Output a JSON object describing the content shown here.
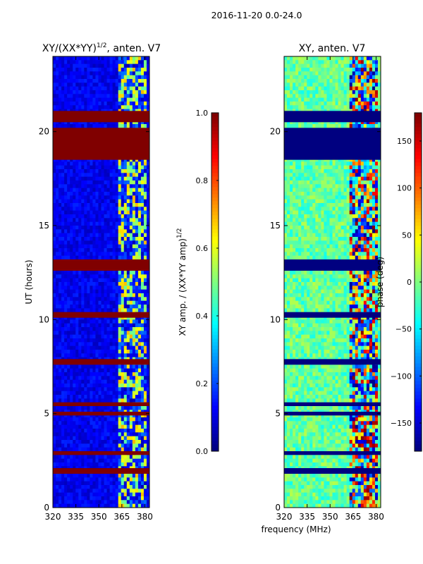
{
  "figure": {
    "suptitle": "2016-11-20 0.0-24.0",
    "shared_xlabel": "frequency (MHz)"
  },
  "chart_data": [
    {
      "type": "heatmap",
      "title_main": "XY/(XX*YY)",
      "title_exp": "1/2",
      "title_suffix": ", anten. V7",
      "xlim": [
        320,
        383
      ],
      "xticks": [
        "320",
        "335",
        "350",
        "365",
        "380"
      ],
      "xtick_values": [
        320,
        335,
        350,
        365,
        380
      ],
      "ylim": [
        0,
        24
      ],
      "ylabel": "UT (hours)",
      "yticks": [
        "0",
        "5",
        "10",
        "15",
        "20"
      ],
      "ytick_values": [
        0,
        5,
        10,
        15,
        20
      ],
      "colormap": "jet",
      "base_value": 0.1,
      "active_band_mhz": [
        363,
        382
      ],
      "active_band_value": 0.45,
      "saturated_bands_hours": [
        [
          18.5,
          20.2
        ],
        [
          20.5,
          21.1
        ],
        [
          12.6,
          13.2
        ],
        [
          10.1,
          10.4
        ],
        [
          7.6,
          7.9
        ],
        [
          5.4,
          5.6
        ],
        [
          4.9,
          5.1
        ],
        [
          2.8,
          3.0
        ],
        [
          1.8,
          2.1
        ]
      ],
      "saturated_value": 1.0,
      "colorbar": {
        "label_main": "XY amp. / (XX*YY amp)",
        "label_exp": "1/2",
        "range": [
          0,
          1
        ],
        "ticks": [
          "0.0",
          "0.2",
          "0.4",
          "0.6",
          "0.8",
          "1.0"
        ],
        "tick_values": [
          0,
          0.2,
          0.4,
          0.6,
          0.8,
          1.0
        ]
      }
    },
    {
      "type": "heatmap",
      "title": "XY, anten. V7",
      "xlim": [
        320,
        383
      ],
      "xticks": [
        "320",
        "335",
        "350",
        "365",
        "380"
      ],
      "xtick_values": [
        320,
        335,
        350,
        365,
        380
      ],
      "ylim": [
        0,
        24
      ],
      "yticks": [
        "0",
        "5",
        "10",
        "15",
        "20"
      ],
      "ytick_values": [
        0,
        5,
        10,
        15,
        20
      ],
      "colormap": "jet",
      "base_value": -10,
      "saturated_bands_hours": [
        [
          18.5,
          20.2
        ],
        [
          20.5,
          21.1
        ],
        [
          12.6,
          13.2
        ],
        [
          10.1,
          10.4
        ],
        [
          7.6,
          7.9
        ],
        [
          5.4,
          5.6
        ],
        [
          4.9,
          5.1
        ],
        [
          2.8,
          3.0
        ],
        [
          1.8,
          2.1
        ]
      ],
      "saturated_value": -180,
      "colorbar": {
        "label": "phase (deg)",
        "range": [
          -180,
          180
        ],
        "ticks": [
          "−150",
          "−100",
          "−50",
          "0",
          "50",
          "100",
          "150"
        ],
        "tick_values": [
          -150,
          -100,
          -50,
          0,
          50,
          100,
          150
        ]
      }
    }
  ]
}
